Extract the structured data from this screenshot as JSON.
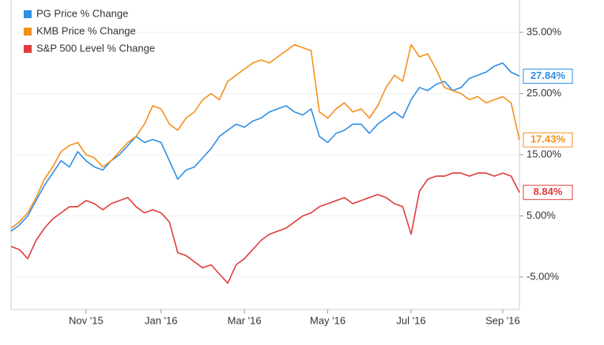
{
  "chart_data": {
    "type": "line",
    "categories": [
      null,
      null,
      null,
      null,
      null,
      null,
      null,
      null,
      null,
      "Nov '15",
      null,
      null,
      null,
      null,
      null,
      null,
      null,
      null,
      "Jan '16",
      null,
      null,
      null,
      null,
      null,
      null,
      null,
      null,
      null,
      "Mar '16",
      null,
      null,
      null,
      null,
      null,
      null,
      null,
      null,
      null,
      "May '16",
      null,
      null,
      null,
      null,
      null,
      null,
      null,
      null,
      null,
      "Jul '16",
      null,
      null,
      null,
      null,
      null,
      null,
      null,
      null,
      null,
      null,
      "Sep '16",
      null,
      null
    ],
    "series": [
      {
        "name": "PG Price % Change",
        "color": "#2f8ee6",
        "values": [
          2.5,
          3.5,
          5,
          7.5,
          10,
          12,
          14,
          13,
          15.5,
          14,
          13,
          12.5,
          14,
          15,
          16.5,
          18,
          17,
          17.5,
          17,
          14,
          11,
          12.5,
          13,
          14.5,
          16,
          18,
          19,
          20,
          19.5,
          20.5,
          21,
          22,
          22.5,
          23,
          22,
          21.5,
          22.5,
          18,
          17,
          18.5,
          19,
          20,
          20,
          18.5,
          20,
          21,
          22,
          21,
          24,
          26,
          25.5,
          26.5,
          27,
          25.5,
          26,
          27.5,
          28,
          28.5,
          29.5,
          30,
          28.5,
          27.84
        ],
        "value_labels": [
          null,
          null,
          null,
          null,
          null,
          null,
          null,
          null,
          null,
          null,
          null,
          null,
          null,
          null,
          null,
          null,
          null,
          null,
          null,
          null,
          null,
          null,
          null,
          null,
          null,
          null,
          null,
          null,
          null,
          null,
          null,
          null,
          null,
          null,
          null,
          null,
          null,
          null,
          null,
          null,
          null,
          null,
          null,
          null,
          null,
          null,
          null,
          null,
          null,
          null,
          null,
          null,
          null,
          null,
          null,
          null,
          null,
          null,
          null,
          null,
          null,
          "27.84%"
        ]
      },
      {
        "name": "KMB Price % Change",
        "color": "#f5901e",
        "values": [
          3,
          4,
          5.5,
          8,
          11,
          13,
          15.5,
          16.5,
          17,
          15,
          14.5,
          13,
          14,
          15.5,
          17,
          18,
          20,
          23,
          22.5,
          20,
          19,
          21,
          22,
          24,
          25,
          24,
          27,
          28,
          29,
          30,
          30.5,
          30,
          31,
          32,
          33,
          32.5,
          32,
          22,
          21,
          22.5,
          23.5,
          22,
          22.5,
          21,
          23,
          26,
          28,
          27,
          33,
          31,
          31.5,
          29,
          26,
          25.5,
          25,
          24,
          24.5,
          23.5,
          24,
          24.5,
          23.5,
          17.43
        ],
        "value_labels": [
          null,
          null,
          null,
          null,
          null,
          null,
          null,
          null,
          null,
          null,
          null,
          null,
          null,
          null,
          null,
          null,
          null,
          null,
          null,
          null,
          null,
          null,
          null,
          null,
          null,
          null,
          null,
          null,
          null,
          null,
          null,
          null,
          null,
          null,
          null,
          null,
          null,
          null,
          null,
          null,
          null,
          null,
          null,
          null,
          null,
          null,
          null,
          null,
          null,
          null,
          null,
          null,
          null,
          null,
          null,
          null,
          null,
          null,
          null,
          null,
          null,
          "17.43%"
        ]
      },
      {
        "name": "S&P 500 Level % Change",
        "color": "#e03c3c",
        "values": [
          0,
          -0.5,
          -2,
          1,
          3,
          4.5,
          5.5,
          6.5,
          6.5,
          7.5,
          7,
          6,
          7,
          7.5,
          8,
          6.5,
          5.5,
          6,
          5.5,
          4,
          -1,
          -1.5,
          -2.5,
          -3.5,
          -3,
          -4.5,
          -6,
          -3,
          -2,
          -0.5,
          1,
          2,
          2.5,
          3,
          4,
          5,
          5.5,
          6.5,
          7,
          7.5,
          8,
          7,
          7.5,
          8,
          8.5,
          8,
          7,
          6.5,
          2,
          9,
          11,
          11.5,
          11.5,
          12,
          12,
          11.5,
          12,
          12,
          11.5,
          12,
          11.5,
          8.84
        ],
        "value_labels": [
          null,
          null,
          null,
          null,
          null,
          null,
          null,
          null,
          null,
          null,
          null,
          null,
          null,
          null,
          null,
          null,
          null,
          null,
          null,
          null,
          null,
          null,
          null,
          null,
          null,
          null,
          null,
          null,
          null,
          null,
          null,
          null,
          null,
          null,
          null,
          null,
          null,
          null,
          null,
          null,
          null,
          null,
          null,
          null,
          null,
          null,
          null,
          null,
          null,
          null,
          null,
          null,
          null,
          null,
          null,
          null,
          null,
          null,
          null,
          null,
          null,
          "8.84%"
        ]
      }
    ],
    "ylim": [
      -10.3,
      40.3
    ],
    "yticks": [
      {
        "value": -5,
        "label": "-5.00%"
      },
      {
        "value": 5,
        "label": "5.00%"
      },
      {
        "value": 15,
        "label": "15.00%"
      },
      {
        "value": 25,
        "label": "25.00%"
      },
      {
        "value": 35,
        "label": "35.00%"
      }
    ],
    "grid": true,
    "legend": "top-left"
  }
}
